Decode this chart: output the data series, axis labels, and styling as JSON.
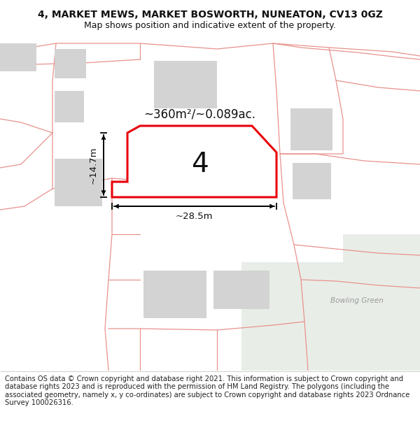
{
  "title": "4, MARKET MEWS, MARKET BOSWORTH, NUNEATON, CV13 0GZ",
  "subtitle": "Map shows position and indicative extent of the property.",
  "footer": "Contains OS data © Crown copyright and database right 2021. This information is subject to Crown copyright and database rights 2023 and is reproduced with the permission of HM Land Registry. The polygons (including the associated geometry, namely x, y co-ordinates) are subject to Crown copyright and database rights 2023 Ordnance Survey 100026316.",
  "bg_color": "#ffffff",
  "map_bg": "#ffffff",
  "green_area_color": "#e9ede8",
  "building_color": "#d3d3d3",
  "road_line_color": "#e8928c",
  "highlight_polygon_color": "#e8000a",
  "area_label": "~360m²/~0.089ac.",
  "number_label": "4",
  "dim_width": "~28.5m",
  "dim_height": "~14.7m",
  "bowling_green_label": "Bowling Green",
  "title_fontsize": 10,
  "subtitle_fontsize": 9,
  "footer_fontsize": 7.2
}
